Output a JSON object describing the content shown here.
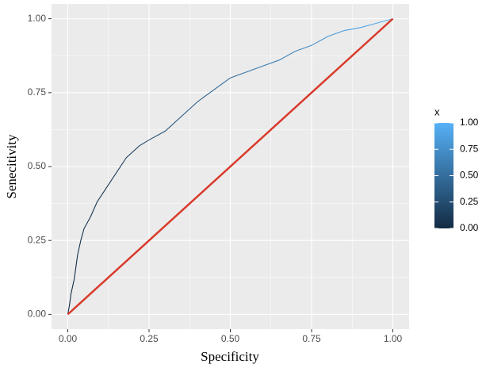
{
  "chart_data": {
    "type": "line",
    "x_label": "Specificity",
    "y_label": "Senecitivity",
    "xlim": [
      -0.05,
      1.05
    ],
    "ylim": [
      -0.05,
      1.05
    ],
    "xticks": [
      {
        "value": 0,
        "label": "0.00"
      },
      {
        "value": 0.25,
        "label": "0.25"
      },
      {
        "value": 0.5,
        "label": "0.50"
      },
      {
        "value": 0.75,
        "label": "0.75"
      },
      {
        "value": 1,
        "label": "1.00"
      }
    ],
    "yticks": [
      {
        "value": 0,
        "label": "0.00"
      },
      {
        "value": 0.25,
        "label": "0.25"
      },
      {
        "value": 0.5,
        "label": "0.50"
      },
      {
        "value": 0.75,
        "label": "0.75"
      },
      {
        "value": 1,
        "label": "1.00"
      }
    ],
    "grid": true,
    "series": [
      {
        "x": [
          0,
          0.005,
          0.01,
          0.02,
          0.03,
          0.04,
          0.05,
          0.07,
          0.09,
          0.12,
          0.15,
          0.18,
          0.22,
          0.25,
          0.3,
          0.35,
          0.4,
          0.45,
          0.5,
          0.55,
          0.6,
          0.65,
          0.7,
          0.75,
          0.8,
          0.85,
          0.9,
          0.95,
          1
        ],
        "y": [
          0,
          0.03,
          0.07,
          0.12,
          0.2,
          0.25,
          0.29,
          0.33,
          0.38,
          0.43,
          0.48,
          0.53,
          0.57,
          0.59,
          0.62,
          0.67,
          0.72,
          0.76,
          0.8,
          0.82,
          0.84,
          0.86,
          0.89,
          0.91,
          0.94,
          0.96,
          0.97,
          0.985,
          1
        ],
        "color_by": "x"
      },
      {
        "x": [
          0,
          1
        ],
        "y": [
          0,
          1
        ],
        "color": "#d93a2b"
      }
    ],
    "colorbar": {
      "title": "x",
      "low_color": "#132b43",
      "high_color": "#56b1f7",
      "lim": [
        0,
        1
      ],
      "ticks": [
        {
          "value": 0,
          "label": "0.00"
        },
        {
          "value": 0.25,
          "label": "0.25"
        },
        {
          "value": 0.5,
          "label": "0.50"
        },
        {
          "value": 0.75,
          "label": "0.75"
        },
        {
          "value": 1,
          "label": "1.00"
        }
      ]
    }
  }
}
